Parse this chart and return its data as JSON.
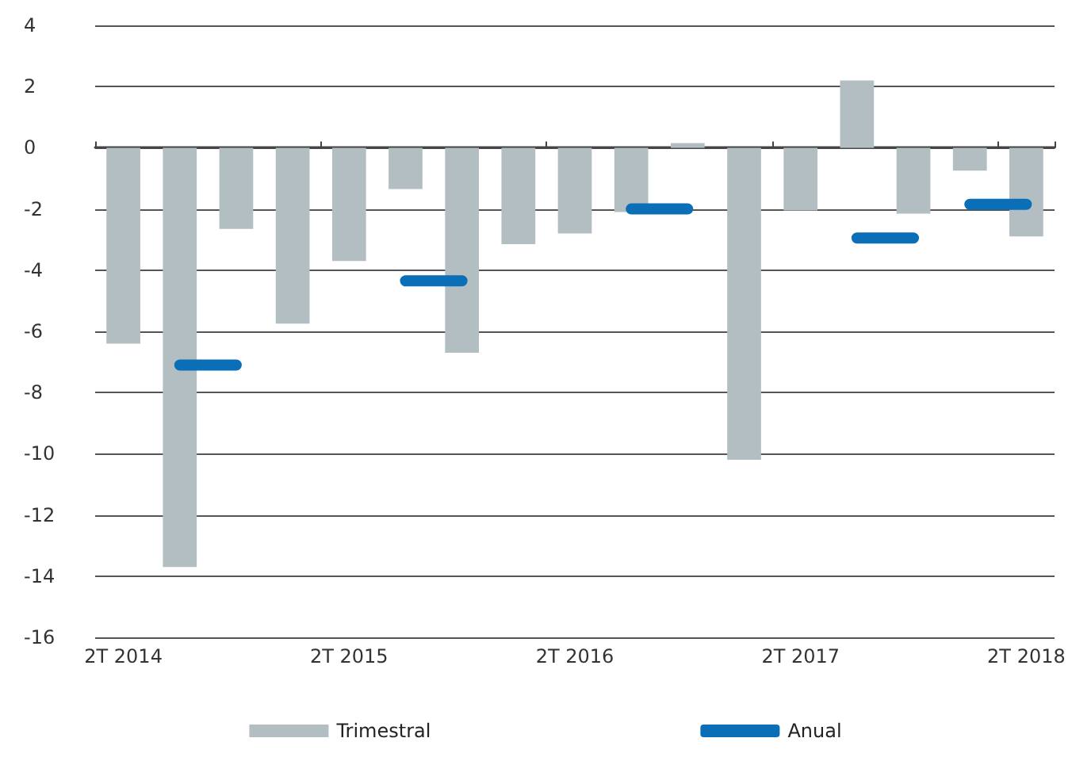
{
  "chart_data": {
    "type": "bar",
    "categories": [
      "2T 2014",
      null,
      null,
      null,
      "2T 2015",
      null,
      null,
      null,
      "2T 2016",
      null,
      null,
      null,
      "2T 2017",
      null,
      null,
      null,
      "2T 2018"
    ],
    "series": [
      {
        "name": "Trimestral",
        "type": "bar",
        "color": "#b3bec2",
        "values": [
          -6.4,
          -13.7,
          -2.65,
          -5.75,
          -3.7,
          -1.35,
          -6.7,
          -3.15,
          -2.8,
          -2.1,
          0.15,
          -10.2,
          -2.05,
          2.2,
          -2.15,
          -0.75,
          -2.9
        ]
      },
      {
        "name": "Anual",
        "type": "line",
        "color": "#0a6fb7",
        "values": [
          null,
          -7.1,
          -7.1,
          null,
          null,
          -4.35,
          -4.35,
          null,
          null,
          -2.0,
          -2.0,
          null,
          null,
          -2.95,
          -2.95,
          null,
          null
        ]
      },
      {
        "type": "line",
        "color": "#0a6fb7",
        "values": [
          null,
          null,
          null,
          null,
          null,
          null,
          null,
          null,
          null,
          null,
          null,
          null,
          null,
          null,
          null,
          -1.85,
          -1.85
        ]
      }
    ],
    "ylim": [
      -16,
      4
    ],
    "yticks": [
      -16,
      -14,
      -12,
      -10,
      -8,
      -6,
      -4,
      -2,
      0,
      2,
      4
    ],
    "grid": "y",
    "legend": "bottom"
  }
}
